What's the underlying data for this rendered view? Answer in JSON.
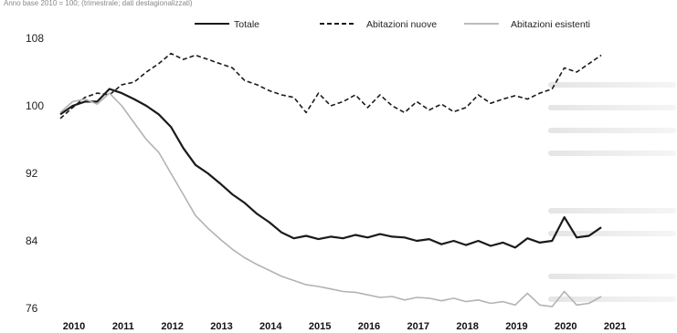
{
  "header_fragment": "Anno base 2010 = 100; (trimestrale; dati destagionalizzati)",
  "chart_data": {
    "type": "line",
    "title": "",
    "xlabel": "",
    "ylabel": "",
    "ylim": [
      74,
      110
    ],
    "yticks": [
      76,
      84,
      92,
      100,
      108
    ],
    "x_range": [
      2010.0,
      2021.5
    ],
    "xticks": [
      "2010",
      "2011",
      "2012",
      "2013",
      "2014",
      "2015",
      "2016",
      "2017",
      "2018",
      "2019",
      "2020",
      "2021"
    ],
    "legend_position": "top",
    "grid": false,
    "series": [
      {
        "name": "Totale",
        "color": "#1a1a1a",
        "style": "solid",
        "x": [
          2010.0,
          2010.25,
          2010.5,
          2010.75,
          2011.0,
          2011.25,
          2011.5,
          2011.75,
          2012.0,
          2012.25,
          2012.5,
          2012.75,
          2013.0,
          2013.25,
          2013.5,
          2013.75,
          2014.0,
          2014.25,
          2014.5,
          2014.75,
          2015.0,
          2015.25,
          2015.5,
          2015.75,
          2016.0,
          2016.25,
          2016.5,
          2016.75,
          2017.0,
          2017.25,
          2017.5,
          2017.75,
          2018.0,
          2018.25,
          2018.5,
          2018.75,
          2019.0,
          2019.25,
          2019.5,
          2019.75,
          2020.0,
          2020.25,
          2020.5,
          2020.75,
          2021.0
        ],
        "y": [
          99.0,
          100.0,
          100.5,
          100.5,
          102.0,
          101.5,
          100.8,
          100.0,
          99.0,
          97.5,
          95.0,
          93.0,
          92.0,
          90.8,
          89.5,
          88.5,
          87.2,
          86.2,
          85.0,
          84.3,
          84.6,
          84.2,
          84.5,
          84.3,
          84.7,
          84.4,
          84.8,
          84.5,
          84.4,
          84.0,
          84.2,
          83.6,
          84.0,
          83.5,
          84.0,
          83.4,
          83.8,
          83.2,
          84.3,
          83.8,
          84.0,
          86.8,
          84.4,
          84.6,
          85.6
        ]
      },
      {
        "name": "Abitazioni nuove",
        "color": "#1a1a1a",
        "style": "dashed",
        "x": [
          2010.0,
          2010.25,
          2010.5,
          2010.75,
          2011.0,
          2011.25,
          2011.5,
          2011.75,
          2012.0,
          2012.25,
          2012.5,
          2012.75,
          2013.0,
          2013.25,
          2013.5,
          2013.75,
          2014.0,
          2014.25,
          2014.5,
          2014.75,
          2015.0,
          2015.25,
          2015.5,
          2015.75,
          2016.0,
          2016.25,
          2016.5,
          2016.75,
          2017.0,
          2017.25,
          2017.5,
          2017.75,
          2018.0,
          2018.25,
          2018.5,
          2018.75,
          2019.0,
          2019.25,
          2019.5,
          2019.75,
          2020.0,
          2020.25,
          2020.5,
          2020.75,
          2021.0
        ],
        "y": [
          98.5,
          99.8,
          101.0,
          101.5,
          101.3,
          102.5,
          102.8,
          104.0,
          105.0,
          106.2,
          105.5,
          106.0,
          105.5,
          105.0,
          104.5,
          103.0,
          102.5,
          101.8,
          101.3,
          101.0,
          99.2,
          101.5,
          100.0,
          100.5,
          101.3,
          99.8,
          101.3,
          100.0,
          99.2,
          100.5,
          99.5,
          100.2,
          99.3,
          99.8,
          101.3,
          100.3,
          100.8,
          101.2,
          100.8,
          101.5,
          102.0,
          104.5,
          104.0,
          105.0,
          106.0
        ]
      },
      {
        "name": "Abitazioni esistenti",
        "color": "#b3b3b3",
        "style": "solid",
        "x": [
          2010.0,
          2010.25,
          2010.5,
          2010.75,
          2011.0,
          2011.25,
          2011.5,
          2011.75,
          2012.0,
          2012.25,
          2012.5,
          2012.75,
          2013.0,
          2013.25,
          2013.5,
          2013.75,
          2014.0,
          2014.25,
          2014.5,
          2014.75,
          2015.0,
          2015.25,
          2015.5,
          2015.75,
          2016.0,
          2016.25,
          2016.5,
          2016.75,
          2017.0,
          2017.25,
          2017.5,
          2017.75,
          2018.0,
          2018.25,
          2018.5,
          2018.75,
          2019.0,
          2019.25,
          2019.5,
          2019.75,
          2020.0,
          2020.25,
          2020.5,
          2020.75,
          2021.0
        ],
        "y": [
          99.2,
          100.5,
          100.8,
          100.2,
          101.5,
          100.0,
          98.0,
          96.0,
          94.5,
          92.0,
          89.5,
          87.0,
          85.5,
          84.2,
          83.0,
          82.0,
          81.2,
          80.5,
          79.8,
          79.3,
          78.8,
          78.6,
          78.3,
          78.0,
          77.9,
          77.6,
          77.3,
          77.4,
          77.0,
          77.3,
          77.2,
          76.9,
          77.2,
          76.8,
          77.0,
          76.6,
          76.8,
          76.4,
          77.8,
          76.4,
          76.2,
          78.0,
          76.4,
          76.6,
          77.4
        ]
      }
    ]
  }
}
